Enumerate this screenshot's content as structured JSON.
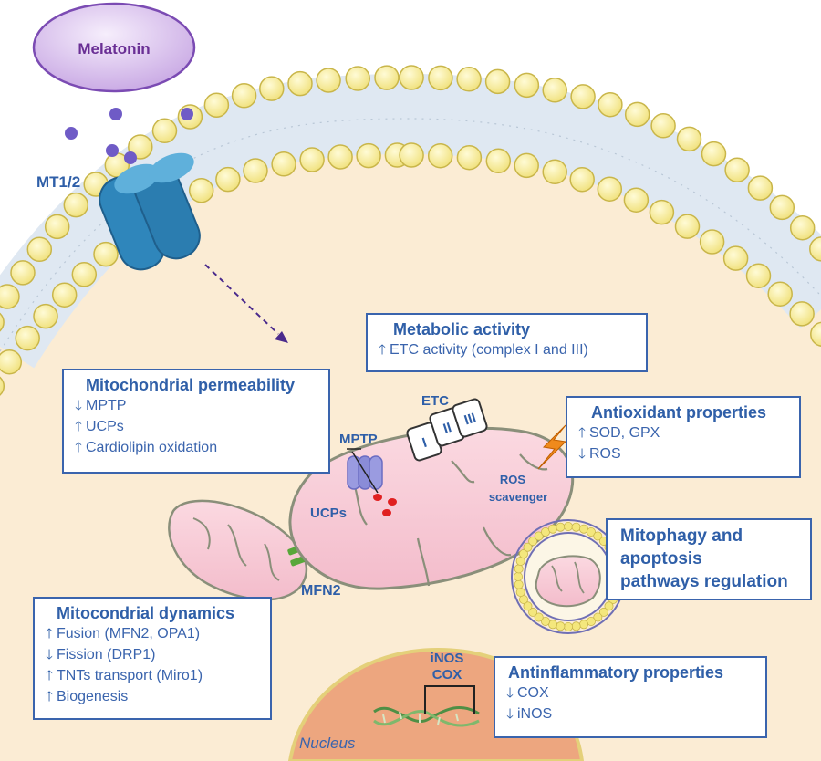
{
  "labels": {
    "melatonin": "Melatonin",
    "receptor": "MT1/2",
    "mptp": "MPTP",
    "ucps": "UCPs",
    "etc": "ETC",
    "complex_1": "I",
    "complex_2": "II",
    "complex_3": "III",
    "ros_scavenger_1": "ROS",
    "ros_scavenger_2": "scavenger",
    "mfn2": "MFN2",
    "inos": "iNOS",
    "cox": "COX",
    "nucleus": "Nucleus"
  },
  "boxes": {
    "metabolic": {
      "title": "Metabolic activity",
      "items": [
        {
          "arrow": "up",
          "text": "ETC activity (complex I and III)"
        }
      ]
    },
    "permeability": {
      "title": "Mitochondrial permeability",
      "items": [
        {
          "arrow": "down",
          "text": "MPTP"
        },
        {
          "arrow": "up",
          "text": "UCPs"
        },
        {
          "arrow": "up",
          "text": "Cardiolipin oxidation"
        }
      ]
    },
    "antioxidant": {
      "title": "Antioxidant properties",
      "items": [
        {
          "arrow": "up",
          "text": "SOD, GPX"
        },
        {
          "arrow": "down",
          "text": "ROS"
        }
      ]
    },
    "mitophagy": {
      "title_lines": [
        "Mitophagy and",
        "apoptosis",
        "pathways regulation"
      ]
    },
    "dynamics": {
      "title": "Mitocondrial dynamics",
      "items": [
        {
          "arrow": "up",
          "text": "Fusion (MFN2, OPA1)"
        },
        {
          "arrow": "down",
          "text": "Fission (DRP1)"
        },
        {
          "arrow": "up",
          "text": "TNTs transport (Miro1)"
        },
        {
          "arrow": "up",
          "text": "Biogenesis"
        }
      ]
    },
    "antiinflammatory": {
      "title": "Antinflammatory properties",
      "items": [
        {
          "arrow": "down",
          "text": "COX"
        },
        {
          "arrow": "down",
          "text": "iNOS"
        }
      ]
    }
  },
  "colors": {
    "cytoplasm": "#fbecd4",
    "membrane_head": "#f6ec9b",
    "receptor": "#2f86bb",
    "mito_fill": "#f6c7d2",
    "nucleus": "#eda67f",
    "text_blue": "#2f5fa8",
    "melatonin_dot": "#6f5bc6"
  }
}
